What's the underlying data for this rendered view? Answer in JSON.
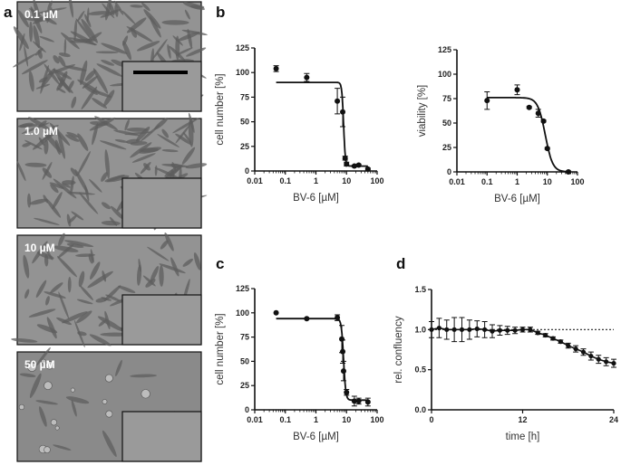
{
  "panel_labels": {
    "a": "a",
    "b": "b",
    "c": "c",
    "d": "d"
  },
  "micrographs": [
    {
      "label": "0.1 µM",
      "scale_bar": true,
      "density": "high"
    },
    {
      "label": "1.0 µM",
      "scale_bar": false,
      "density": "high"
    },
    {
      "label": "10 µM",
      "scale_bar": false,
      "density": "medium"
    },
    {
      "label": "50 µM",
      "scale_bar": false,
      "density": "low"
    }
  ],
  "chart_data": [
    {
      "id": "b-left",
      "type": "scatter",
      "xscale": "log",
      "xlim": [
        0.01,
        100
      ],
      "ylim": [
        0,
        125
      ],
      "xticks": [
        "0.01",
        "0.1",
        "1",
        "10",
        "100"
      ],
      "yticks": [
        "0",
        "25",
        "50",
        "75",
        "100",
        "125"
      ],
      "xlabel": "BV-6 [µM]",
      "ylabel": "cell number [%]",
      "x": [
        0.05,
        0.5,
        5,
        7.5,
        9,
        10,
        18,
        25,
        50
      ],
      "y": [
        104,
        95,
        71,
        60,
        13,
        7,
        5,
        6,
        2
      ],
      "err": [
        3,
        4,
        13,
        15,
        2,
        2,
        1,
        1,
        1
      ],
      "fit": {
        "top": 90,
        "bottom": 5,
        "ic50": 8,
        "hill": 15
      }
    },
    {
      "id": "b-right",
      "type": "scatter",
      "xscale": "log",
      "xlim": [
        0.01,
        100
      ],
      "ylim": [
        0,
        125
      ],
      "xticks": [
        "0.01",
        "0.1",
        "1",
        "10",
        "100"
      ],
      "yticks": [
        "0",
        "25",
        "50",
        "75",
        "100",
        "125"
      ],
      "xlabel": "BV-6 [µM]",
      "ylabel": "viability [%]",
      "x": [
        0.1,
        1,
        2.5,
        5,
        7.5,
        10,
        50
      ],
      "y": [
        73,
        84,
        66,
        60,
        52,
        24,
        0
      ],
      "err": [
        9,
        5,
        1,
        4,
        1,
        1,
        1
      ],
      "fit": {
        "top": 76,
        "bottom": 0,
        "ic50": 8.5,
        "hill": 3.5
      }
    },
    {
      "id": "c",
      "type": "scatter",
      "xscale": "log",
      "xlim": [
        0.01,
        100
      ],
      "ylim": [
        0,
        125
      ],
      "xticks": [
        "0.01",
        "0.1",
        "1",
        "10",
        "100"
      ],
      "yticks": [
        "0",
        "25",
        "50",
        "75",
        "100",
        "125"
      ],
      "xlabel": "BV-6 [µM]",
      "ylabel": "cell number [%]",
      "x": [
        0.05,
        0.5,
        5,
        7,
        7.5,
        8,
        10,
        18,
        25,
        50
      ],
      "y": [
        100,
        94,
        95,
        73,
        60,
        40,
        18,
        9,
        9,
        8
      ],
      "err": [
        0,
        0,
        3,
        14,
        12,
        10,
        3,
        5,
        3,
        4
      ],
      "fit": {
        "top": 94,
        "bottom": 10,
        "ic50": 8,
        "hill": 12
      }
    },
    {
      "id": "d",
      "type": "line",
      "xlim": [
        0,
        24
      ],
      "ylim": [
        0,
        1.5
      ],
      "xticks": [
        "0",
        "12",
        "24"
      ],
      "yticks": [
        "0.0",
        "0.5",
        "1.0",
        "1.5"
      ],
      "xlabel": "time [h]",
      "ylabel": "rel. confluency",
      "reference_line": 1.0,
      "x": [
        0,
        1,
        2,
        3,
        4,
        5,
        6,
        7,
        8,
        9,
        10,
        11,
        12,
        13,
        14,
        15,
        16,
        17,
        18,
        19,
        20,
        21,
        22,
        23,
        24
      ],
      "y": [
        1.0,
        1.02,
        1.0,
        1.0,
        1.0,
        1.0,
        1.01,
        1.0,
        0.98,
        0.99,
        0.99,
        0.99,
        1.0,
        1.0,
        0.96,
        0.93,
        0.89,
        0.85,
        0.8,
        0.76,
        0.72,
        0.67,
        0.63,
        0.6,
        0.58
      ],
      "err": [
        0.1,
        0.12,
        0.12,
        0.15,
        0.15,
        0.12,
        0.1,
        0.1,
        0.08,
        0.06,
        0.05,
        0.04,
        0.03,
        0.03,
        0.02,
        0.02,
        0.02,
        0.02,
        0.03,
        0.04,
        0.04,
        0.05,
        0.05,
        0.05,
        0.05
      ]
    }
  ]
}
